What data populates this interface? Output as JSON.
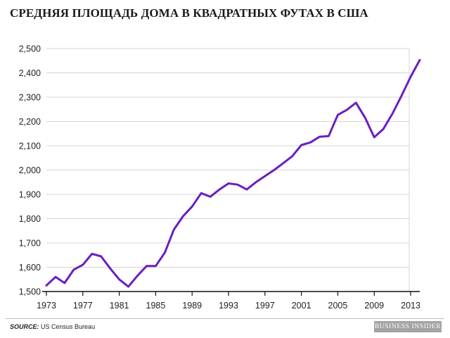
{
  "chart_data": {
    "type": "line",
    "title": "СРЕДНЯЯ ПЛОЩАДЬ ДОМА В КВАДРАТНЫХ ФУТАХ В США",
    "xlabel": "",
    "ylabel": "",
    "xlim": [
      1973,
      2014
    ],
    "ylim": [
      1500,
      2500
    ],
    "x_ticks": [
      "1973",
      "1977",
      "1981",
      "1985",
      "1989",
      "1993",
      "1997",
      "2001",
      "2005",
      "2009",
      "2013"
    ],
    "y_ticks": [
      "1,500",
      "1,600",
      "1,700",
      "1,800",
      "1,900",
      "2,000",
      "2,100",
      "2,200",
      "2,300",
      "2,400",
      "2,500"
    ],
    "y_tick_values": [
      1500,
      1600,
      1700,
      1800,
      1900,
      2000,
      2100,
      2200,
      2300,
      2400,
      2500
    ],
    "x_tick_values": [
      1973,
      1977,
      1981,
      1985,
      1989,
      1993,
      1997,
      2001,
      2005,
      2009,
      2013
    ],
    "grid": true,
    "line_color": "#6a1fc2",
    "series": [
      {
        "x": [
          1973,
          1974,
          1975,
          1976,
          1977,
          1978,
          1979,
          1980,
          1981,
          1982,
          1983,
          1984,
          1985,
          1986,
          1987,
          1988,
          1989,
          1990,
          1991,
          1992,
          1993,
          1994,
          1995,
          1996,
          1997,
          1998,
          1999,
          2000,
          2001,
          2002,
          2003,
          2004,
          2005,
          2006,
          2007,
          2008,
          2009,
          2010,
          2011,
          2012,
          2013,
          2014
        ],
        "values": [
          1525,
          1560,
          1535,
          1590,
          1610,
          1655,
          1645,
          1595,
          1550,
          1520,
          1565,
          1605,
          1605,
          1660,
          1755,
          1810,
          1850,
          1905,
          1890,
          1920,
          1945,
          1940,
          1920,
          1950,
          1975,
          2000,
          2028,
          2057,
          2103,
          2114,
          2137,
          2140,
          2227,
          2248,
          2277,
          2215,
          2135,
          2169,
          2232,
          2306,
          2384,
          2453
        ]
      }
    ]
  },
  "source": {
    "label": "SOURCE:",
    "text": "US Census Bureau"
  },
  "brand": "BUSINESS INSIDER"
}
